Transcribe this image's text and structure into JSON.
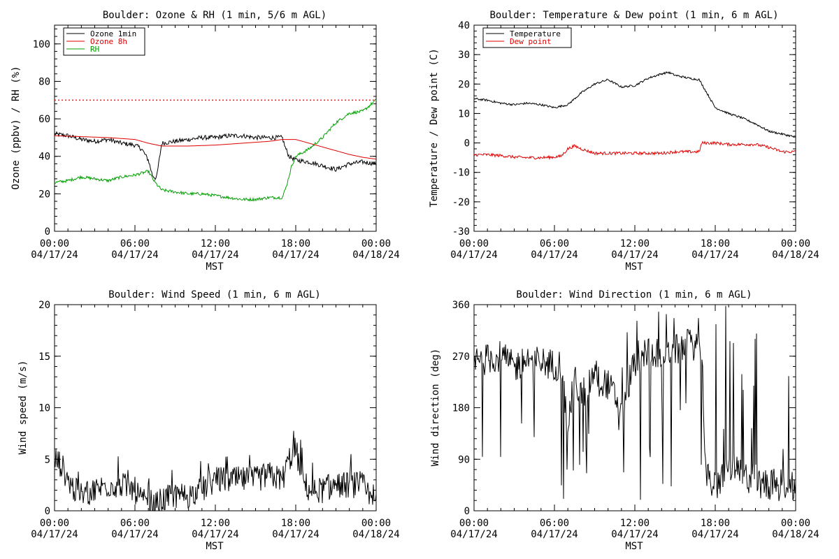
{
  "chart_data": [
    {
      "type": "line",
      "title": "Boulder: Ozone & RH (1 min, 5/6 m AGL)",
      "xlabel": "MST",
      "ylabel": "Ozone (ppbv) / RH (%)",
      "xlim": [
        0,
        24
      ],
      "ylim": [
        0,
        110
      ],
      "yticks": [
        0,
        20,
        40,
        60,
        80,
        100
      ],
      "xtick_labels": [
        [
          "00:00",
          "04/17/24"
        ],
        [
          "06:00",
          "04/17/24"
        ],
        [
          "12:00",
          "04/17/24"
        ],
        [
          "18:00",
          "04/17/24"
        ],
        [
          "00:00",
          "04/18/24"
        ]
      ],
      "legend": "top-left",
      "reference_line": {
        "y": 70,
        "color": "#e00000",
        "style": "dotted"
      },
      "series": [
        {
          "name": "Ozone 1min",
          "color": "#000000",
          "noise": 1.2,
          "x": [
            0,
            1,
            2,
            3,
            4,
            5,
            6,
            6.5,
            7,
            7.3,
            7.6,
            8,
            9,
            10,
            11,
            12,
            13,
            14,
            15,
            16,
            17,
            17.2,
            17.5,
            18,
            19,
            20,
            21,
            22,
            23,
            24
          ],
          "y": [
            52,
            51,
            49,
            48,
            49,
            47,
            46,
            44,
            38,
            30,
            28,
            47,
            48,
            49,
            50,
            50,
            51,
            51,
            50,
            50,
            50,
            45,
            40,
            38,
            37,
            35,
            33,
            36,
            37,
            36
          ]
        },
        {
          "name": "Ozone 8h",
          "color": "#e00000",
          "noise": 0,
          "x": [
            0,
            2,
            4,
            6,
            7,
            8,
            10,
            12,
            14,
            16,
            17,
            18,
            19,
            20,
            21,
            22,
            23,
            24
          ],
          "y": [
            51,
            50.5,
            50,
            49,
            47,
            45.5,
            45.5,
            46,
            47,
            48,
            49,
            49,
            47,
            45,
            43,
            41,
            39.5,
            38.5
          ]
        },
        {
          "name": "RH",
          "color": "#00a000",
          "noise": 0.8,
          "x": [
            0,
            1,
            2,
            3,
            4,
            5,
            6,
            7,
            7.5,
            8,
            9,
            10,
            11,
            12,
            13,
            14,
            15,
            16,
            17,
            17.3,
            17.7,
            18,
            19,
            20,
            21,
            22,
            23,
            24
          ],
          "y": [
            26,
            27,
            29,
            28,
            27,
            29,
            30,
            32,
            26,
            22,
            21,
            20,
            20,
            19,
            18,
            17,
            17,
            18,
            18,
            24,
            35,
            40,
            44,
            50,
            58,
            63,
            64,
            70
          ]
        }
      ]
    },
    {
      "type": "line",
      "title": "Boulder: Temperature & Dew point (1 min, 6 m AGL)",
      "xlabel": "MST",
      "ylabel": "Temperature / Dew point (C)",
      "xlim": [
        0,
        24
      ],
      "ylim": [
        -30,
        40
      ],
      "yticks": [
        -30,
        -20,
        -10,
        0,
        10,
        20,
        30,
        40
      ],
      "xtick_labels": [
        [
          "00:00",
          "04/17/24"
        ],
        [
          "06:00",
          "04/17/24"
        ],
        [
          "12:00",
          "04/17/24"
        ],
        [
          "18:00",
          "04/17/24"
        ],
        [
          "00:00",
          "04/18/24"
        ]
      ],
      "legend": "top-left",
      "series": [
        {
          "name": "Temperature",
          "color": "#000000",
          "noise": 0.35,
          "x": [
            0,
            1,
            2,
            3,
            4,
            5,
            6,
            7,
            8,
            9,
            10,
            11,
            12,
            13,
            14,
            14.5,
            15,
            16,
            16.8,
            17.5,
            18,
            19,
            20,
            21,
            22,
            23,
            24
          ],
          "y": [
            15,
            14.5,
            13.5,
            13,
            13.5,
            13,
            12,
            13,
            17,
            20,
            21.5,
            19,
            19.5,
            22,
            23.5,
            24,
            23,
            22,
            21.5,
            16,
            12,
            10,
            8.5,
            6.5,
            4,
            3,
            2
          ]
        },
        {
          "name": "Dew point",
          "color": "#e00000",
          "noise": 0.5,
          "x": [
            0,
            1,
            2,
            3,
            4,
            5,
            6,
            6.5,
            7,
            7.5,
            8,
            9,
            10,
            11,
            12,
            13,
            14,
            15,
            16,
            16.8,
            17,
            18,
            19,
            20,
            21,
            22,
            23,
            24
          ],
          "y": [
            -4,
            -4,
            -4.3,
            -4.8,
            -5,
            -5,
            -4.8,
            -4.5,
            -2,
            -1,
            -2,
            -3.5,
            -3.5,
            -3.5,
            -3.5,
            -3.5,
            -3.5,
            -3,
            -3,
            -3,
            0,
            0,
            -0.5,
            -0.5,
            -0.5,
            -1.5,
            -3,
            -3
          ]
        }
      ]
    },
    {
      "type": "line",
      "title": "Boulder: Wind Speed (1 min, 6 m AGL)",
      "xlabel": "MST",
      "ylabel": "Wind speed (m/s)",
      "xlim": [
        0,
        24
      ],
      "ylim": [
        0,
        20
      ],
      "yticks": [
        0,
        5,
        10,
        15,
        20
      ],
      "xtick_labels": [
        [
          "00:00",
          "04/17/24"
        ],
        [
          "06:00",
          "04/17/24"
        ],
        [
          "12:00",
          "04/17/24"
        ],
        [
          "18:00",
          "04/17/24"
        ],
        [
          "00:00",
          "04/18/24"
        ]
      ],
      "series": [
        {
          "name": "",
          "color": "#000000",
          "noise": 1.3,
          "x": [
            0,
            0.5,
            1,
            1.5,
            2,
            3,
            4,
            5,
            6,
            6.5,
            7,
            7.5,
            8,
            9,
            10,
            11,
            12,
            13,
            14,
            15,
            16,
            17,
            17.5,
            18,
            18.5,
            19,
            20,
            21,
            22,
            23,
            23.5,
            24
          ],
          "y": [
            5,
            4.5,
            3,
            2,
            1.5,
            2,
            2.5,
            2.5,
            2,
            1,
            0.5,
            0.5,
            1,
            1.5,
            1.5,
            2,
            3,
            3,
            3,
            3,
            3.5,
            3,
            5,
            6,
            3,
            2,
            2,
            2.5,
            2.5,
            2.5,
            1,
            0.5
          ]
        }
      ]
    },
    {
      "type": "line",
      "title": "Boulder: Wind Direction (1 min, 6 m AGL)",
      "xlabel": "MST",
      "ylabel": "Wind direction (deg)",
      "xlim": [
        0,
        24
      ],
      "ylim": [
        0,
        360
      ],
      "yticks": [
        0,
        90,
        180,
        270,
        360
      ],
      "xtick_labels": [
        [
          "00:00",
          "04/17/24"
        ],
        [
          "06:00",
          "04/17/24"
        ],
        [
          "12:00",
          "04/17/24"
        ],
        [
          "18:00",
          "04/17/24"
        ],
        [
          "00:00",
          "04/18/24"
        ]
      ],
      "series": [
        {
          "name": "",
          "color": "#000000",
          "noise": 28,
          "x": [
            0,
            1,
            2,
            3,
            4,
            5,
            6,
            6.5,
            7,
            7.5,
            8,
            9,
            10,
            11,
            12,
            13,
            14,
            15,
            16,
            17,
            17.3,
            18,
            19,
            20,
            21,
            22,
            23,
            24
          ],
          "y": [
            260,
            265,
            270,
            250,
            265,
            260,
            255,
            255,
            150,
            230,
            200,
            240,
            220,
            180,
            260,
            280,
            275,
            280,
            290,
            290,
            60,
            40,
            80,
            60,
            55,
            45,
            50,
            40
          ]
        }
      ]
    }
  ]
}
